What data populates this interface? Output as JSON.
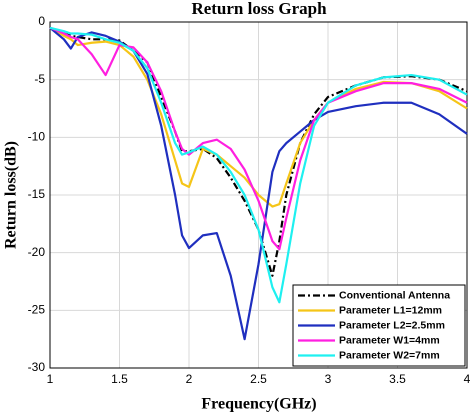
{
  "chart_data": {
    "type": "line",
    "title": "Return loss Graph",
    "xlabel": "Frequency(GHz)",
    "ylabel": "Return loss(dB)",
    "x": [
      1,
      1.1,
      1.15,
      1.2,
      1.3,
      1.4,
      1.5,
      1.6,
      1.7,
      1.8,
      1.9,
      1.95,
      2,
      2.1,
      2.2,
      2.3,
      2.4,
      2.5,
      2.6,
      2.65,
      2.7,
      2.8,
      2.9,
      3,
      3.2,
      3.4,
      3.6,
      3.8,
      4
    ],
    "series": [
      {
        "name": "Conventional Antenna",
        "color": "#000000",
        "dash": "dashdot",
        "values": [
          -0.5,
          -1.0,
          -1.2,
          -1.3,
          -1.5,
          -1.5,
          -1.6,
          -2.5,
          -3.5,
          -6.5,
          -9.5,
          -11.2,
          -11.2,
          -11.0,
          -11.8,
          -13.5,
          -15.5,
          -18.0,
          -22.0,
          -19.0,
          -15.0,
          -10.5,
          -8.0,
          -6.5,
          -5.5,
          -4.8,
          -4.7,
          -5.0,
          -6.0
        ]
      },
      {
        "name": "Parameter L1=12mm",
        "color": "#f5c518",
        "values": [
          -0.5,
          -1.2,
          -1.5,
          -2.0,
          -1.8,
          -1.7,
          -2.0,
          -3.0,
          -5.0,
          -8.0,
          -12.0,
          -14.0,
          -14.3,
          -11.0,
          -11.5,
          -12.5,
          -13.5,
          -15.0,
          -16.0,
          -15.8,
          -14.0,
          -10.5,
          -8.5,
          -7.0,
          -5.8,
          -5.2,
          -5.3,
          -6.0,
          -7.5
        ]
      },
      {
        "name": "Parameter L2=2.5mm",
        "color": "#1f2fbf",
        "values": [
          -0.5,
          -1.5,
          -2.3,
          -1.3,
          -0.9,
          -1.2,
          -1.7,
          -2.5,
          -4.5,
          -9.0,
          -15.0,
          -18.5,
          -19.6,
          -18.5,
          -18.3,
          -22.0,
          -27.5,
          -21.0,
          -13.0,
          -11.2,
          -10.5,
          -9.5,
          -8.5,
          -7.8,
          -7.3,
          -7.0,
          -7.0,
          -8.0,
          -9.7
        ]
      },
      {
        "name": "Parameter W1=4mm",
        "color": "#ff1fe0",
        "values": [
          -0.5,
          -1.0,
          -1.3,
          -1.5,
          -2.8,
          -4.6,
          -2.0,
          -2.2,
          -3.5,
          -6.0,
          -9.5,
          -11.0,
          -11.5,
          -10.5,
          -10.2,
          -11.0,
          -12.8,
          -15.5,
          -19.0,
          -19.7,
          -17.0,
          -12.0,
          -8.5,
          -7.0,
          -6.0,
          -5.3,
          -5.3,
          -5.8,
          -7.0
        ]
      },
      {
        "name": "Parameter W2=7mm",
        "color": "#1ef0f0",
        "values": [
          -0.5,
          -0.8,
          -1.0,
          -1.0,
          -1.1,
          -1.5,
          -1.8,
          -2.5,
          -4.0,
          -7.0,
          -10.5,
          -11.5,
          -11.3,
          -10.8,
          -11.5,
          -13.0,
          -15.0,
          -18.0,
          -23.0,
          -24.3,
          -21.0,
          -14.0,
          -9.0,
          -7.0,
          -5.5,
          -4.8,
          -4.6,
          -5.0,
          -6.3
        ]
      }
    ],
    "xlim": [
      1,
      4
    ],
    "xticks": [
      1,
      1.5,
      2,
      2.5,
      3,
      3.5,
      4
    ],
    "ylim": [
      -30,
      0
    ],
    "yticks": [
      0,
      -5,
      -10,
      -15,
      -20,
      -25,
      -30
    ],
    "grid": true,
    "legend": "lower right"
  }
}
